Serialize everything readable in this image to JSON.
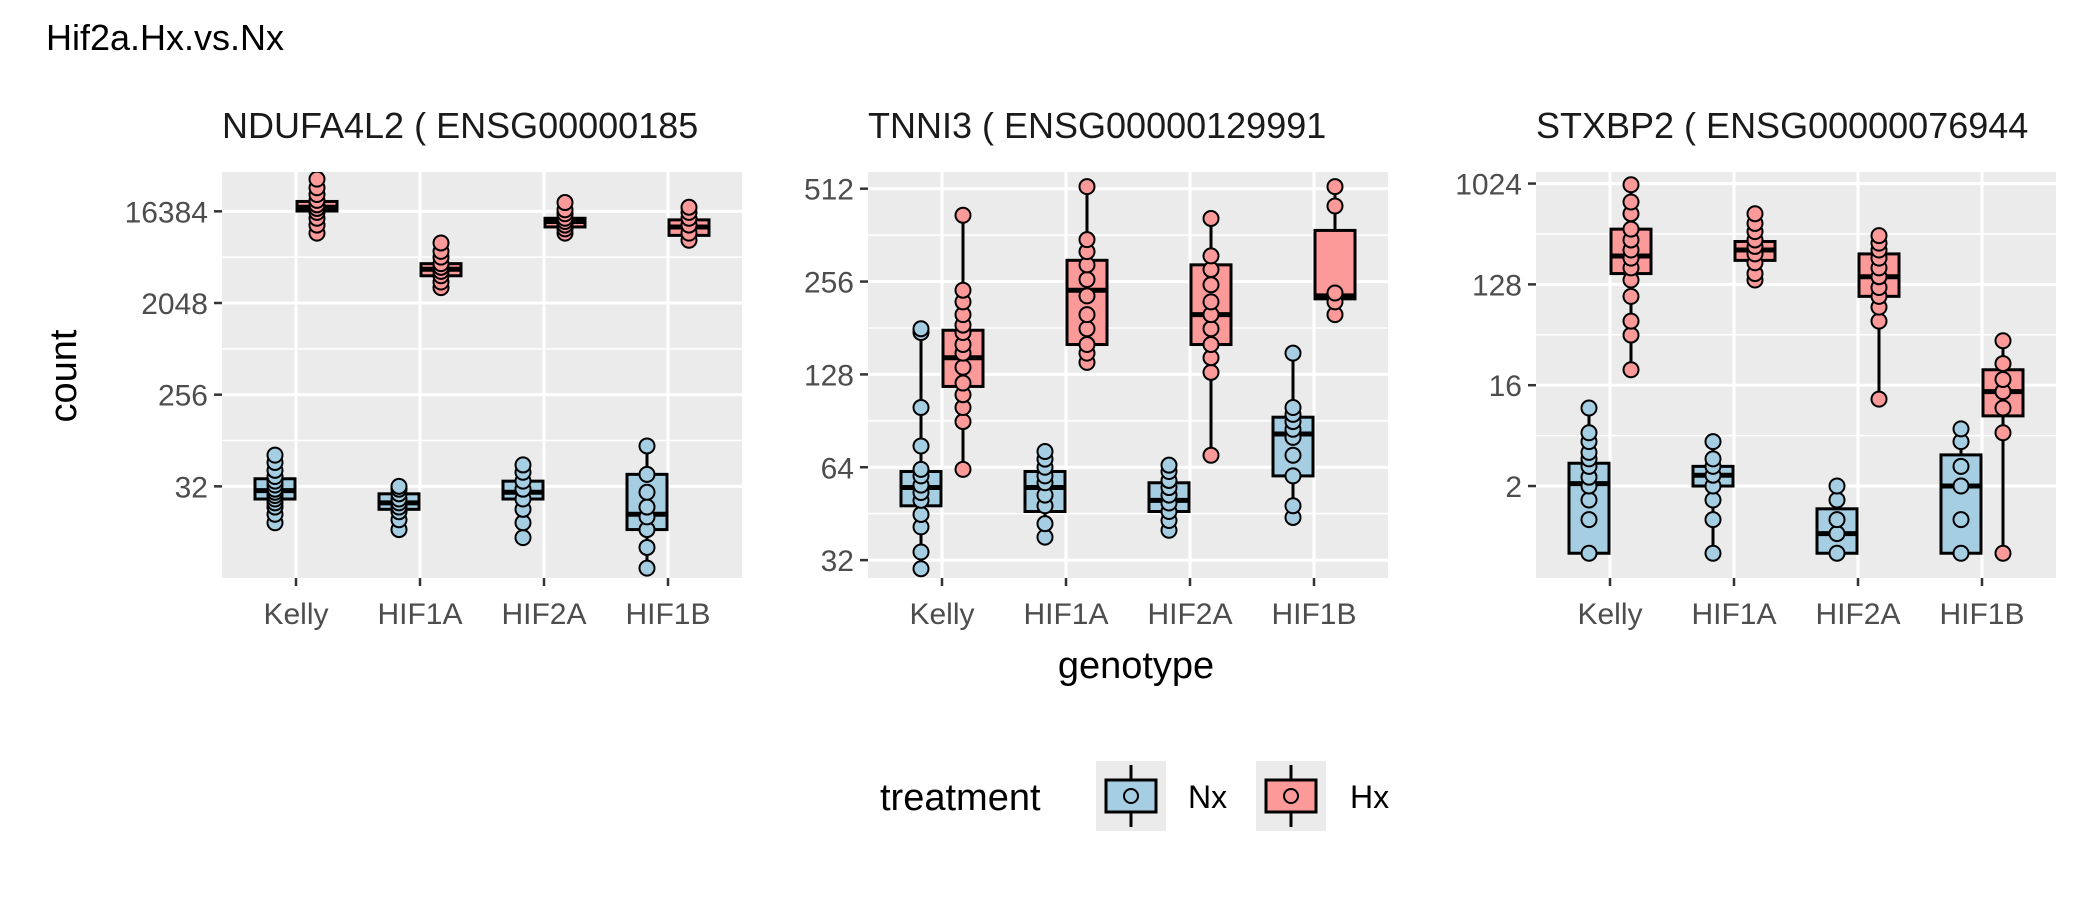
{
  "chart_data": {
    "type": "box",
    "title": "Hif2a.Hx.vs.Nx",
    "xlabel": "genotype",
    "ylabel": "count",
    "y_scale": "log2",
    "grid": true,
    "legend": {
      "title": "treatment",
      "position": "bottom",
      "entries": [
        {
          "name": "Nx",
          "color": "#a6cee3"
        },
        {
          "name": "Hx",
          "color": "#fb9a99"
        }
      ]
    },
    "categories": [
      "Kelly",
      "HIF1A",
      "HIF2A",
      "HIF1B"
    ],
    "panels": [
      {
        "title": "NDUFA4L2 ( ENSG00000185",
        "ylim": [
          4,
          40000
        ],
        "y_ticks": [
          32,
          256,
          2048,
          16384
        ],
        "boxes": [
          {
            "category": "Kelly",
            "treatment": "Nx",
            "q1": 24,
            "median": 29,
            "q3": 38,
            "lower": 14,
            "upper": 65,
            "points": [
              14,
              17,
              20,
              22,
              24,
              26,
              28,
              30,
              33,
              36,
              40,
              46,
              55,
              65
            ]
          },
          {
            "category": "Kelly",
            "treatment": "Hx",
            "q1": 16500,
            "median": 18000,
            "q3": 20500,
            "lower": 10000,
            "upper": 34000,
            "points": [
              10000,
              12000,
              14000,
              16000,
              17500,
              19000,
              21000,
              24000,
              28000,
              34000
            ]
          },
          {
            "category": "HIF1A",
            "treatment": "Nx",
            "q1": 19,
            "median": 22,
            "q3": 27,
            "lower": 12,
            "upper": 32,
            "points": [
              12,
              15,
              18,
              20,
              22,
              24,
              27,
              30,
              32
            ]
          },
          {
            "category": "HIF1A",
            "treatment": "Hx",
            "q1": 3800,
            "median": 4400,
            "q3": 5000,
            "lower": 2900,
            "upper": 8000,
            "points": [
              2900,
              3300,
              3800,
              4200,
              4600,
              5000,
              5800,
              6600,
              8000
            ]
          },
          {
            "category": "HIF2A",
            "treatment": "Nx",
            "q1": 24,
            "median": 28,
            "q3": 36,
            "lower": 10,
            "upper": 52,
            "points": [
              10,
              14,
              19,
              24,
              30,
              36,
              44,
              52
            ]
          },
          {
            "category": "HIF2A",
            "treatment": "Hx",
            "q1": 11500,
            "median": 13000,
            "q3": 14000,
            "lower": 10000,
            "upper": 20000,
            "points": [
              10000,
              11000,
              12000,
              13000,
              14000,
              15500,
              17000,
              20000
            ]
          },
          {
            "category": "HIF1B",
            "treatment": "Nx",
            "q1": 12,
            "median": 17,
            "q3": 42,
            "lower": 5,
            "upper": 80,
            "points": [
              5,
              8,
              12,
              16,
              20,
              28,
              42,
              80
            ]
          },
          {
            "category": "HIF1B",
            "treatment": "Hx",
            "q1": 9500,
            "median": 11500,
            "q3": 13500,
            "lower": 8500,
            "upper": 18000,
            "points": [
              8500,
              10000,
              12000,
              14000,
              16000,
              18000
            ]
          }
        ]
      },
      {
        "title": "TNNI3 ( ENSG00000129991",
        "ylim": [
          28,
          580
        ],
        "y_ticks": [
          32,
          64,
          128,
          256,
          512
        ],
        "boxes": [
          {
            "category": "Kelly",
            "treatment": "Nx",
            "q1": 48,
            "median": 55,
            "q3": 62,
            "lower": 30,
            "upper": 180,
            "points": [
              30,
              34,
              41,
              45,
              50,
              53,
              56,
              60,
              63,
              75,
              100,
              175,
              180
            ]
          },
          {
            "category": "Kelly",
            "treatment": "Hx",
            "q1": 117,
            "median": 145,
            "q3": 178,
            "lower": 63,
            "upper": 420,
            "points": [
              63,
              90,
              100,
              110,
              120,
              135,
              150,
              160,
              175,
              185,
              200,
              220,
              240,
              420
            ]
          },
          {
            "category": "HIF1A",
            "treatment": "Nx",
            "q1": 46,
            "median": 55,
            "q3": 62,
            "lower": 38,
            "upper": 72,
            "points": [
              38,
              42,
              48,
              52,
              57,
              60,
              64,
              68,
              72
            ]
          },
          {
            "category": "HIF1A",
            "treatment": "Hx",
            "q1": 160,
            "median": 240,
            "q3": 300,
            "lower": 140,
            "upper": 520,
            "points": [
              140,
              150,
              160,
              180,
              200,
              230,
              260,
              290,
              320,
              350,
              520
            ]
          },
          {
            "category": "HIF2A",
            "treatment": "Nx",
            "q1": 46,
            "median": 50,
            "q3": 57,
            "lower": 40,
            "upper": 65,
            "points": [
              40,
              43,
              46,
              49,
              52,
              55,
              58,
              62,
              65
            ]
          },
          {
            "category": "HIF2A",
            "treatment": "Hx",
            "q1": 160,
            "median": 200,
            "q3": 290,
            "lower": 70,
            "upper": 410,
            "points": [
              70,
              130,
              145,
              160,
              180,
              200,
              220,
              250,
              280,
              310,
              410
            ]
          },
          {
            "category": "HIF1B",
            "treatment": "Nx",
            "q1": 60,
            "median": 82,
            "q3": 93,
            "lower": 44,
            "upper": 150,
            "points": [
              44,
              48,
              60,
              70,
              80,
              85,
              90,
              95,
              100,
              150
            ]
          },
          {
            "category": "HIF1B",
            "treatment": "Hx",
            "q1": 225,
            "median": 230,
            "q3": 375,
            "lower": 200,
            "upper": 520,
            "points": [
              200,
              220,
              235,
              450,
              520
            ]
          }
        ]
      },
      {
        "title": "STXBP2 ( ENSG00000076944",
        "ylim": [
          0.3,
          1300
        ],
        "y_ticks": [
          2,
          16,
          128,
          1024
        ],
        "boxes": [
          {
            "category": "Kelly",
            "treatment": "Nx",
            "q1": 0.5,
            "median": 2.1,
            "q3": 3.2,
            "lower": 0.5,
            "upper": 10,
            "points": [
              0.5,
              1.0,
              1.5,
              2.0,
              2.4,
              3.0,
              3.5,
              4.0,
              5.0,
              6.0,
              10
            ]
          },
          {
            "category": "Kelly",
            "treatment": "Hx",
            "q1": 160,
            "median": 230,
            "q3": 400,
            "lower": 22,
            "upper": 1000,
            "points": [
              22,
              45,
              60,
              100,
              140,
              180,
              220,
              260,
              320,
              400,
              550,
              700,
              1000
            ]
          },
          {
            "category": "HIF1A",
            "treatment": "Nx",
            "q1": 2.0,
            "median": 2.5,
            "q3": 3.0,
            "lower": 0.5,
            "upper": 5.0,
            "points": [
              0.5,
              1.0,
              1.5,
              2.0,
              2.5,
              3.0,
              3.5,
              5.0
            ]
          },
          {
            "category": "HIF1A",
            "treatment": "Hx",
            "q1": 210,
            "median": 260,
            "q3": 310,
            "lower": 140,
            "upper": 550,
            "points": [
              140,
              160,
              200,
              240,
              280,
              320,
              380,
              450,
              550
            ]
          },
          {
            "category": "HIF2A",
            "treatment": "Nx",
            "q1": 0.5,
            "median": 0.75,
            "q3": 1.25,
            "lower": 0.5,
            "upper": 2.0,
            "points": [
              0.5,
              0.75,
              1.0,
              1.5,
              2.0
            ]
          },
          {
            "category": "HIF2A",
            "treatment": "Hx",
            "q1": 100,
            "median": 150,
            "q3": 240,
            "lower": 12,
            "upper": 350,
            "points": [
              12,
              60,
              80,
              100,
              120,
              150,
              180,
              220,
              260,
              300,
              350
            ]
          },
          {
            "category": "HIF1B",
            "treatment": "Nx",
            "q1": 0.5,
            "median": 2.0,
            "q3": 3.8,
            "lower": 0.5,
            "upper": 6.5,
            "points": [
              0.5,
              1.0,
              2.0,
              3.0,
              5.0,
              6.5
            ]
          },
          {
            "category": "HIF1B",
            "treatment": "Hx",
            "q1": 8.5,
            "median": 14,
            "q3": 22,
            "lower": 0.5,
            "upper": 40,
            "points": [
              0.5,
              6,
              10,
              14,
              18,
              25,
              40
            ]
          }
        ]
      }
    ],
    "colors": {
      "Nx": "#a6cee3",
      "Hx": "#fb9a99",
      "panel_bg": "#ebebeb",
      "grid": "#ffffff",
      "axis_text": "#4d4d4d"
    }
  }
}
